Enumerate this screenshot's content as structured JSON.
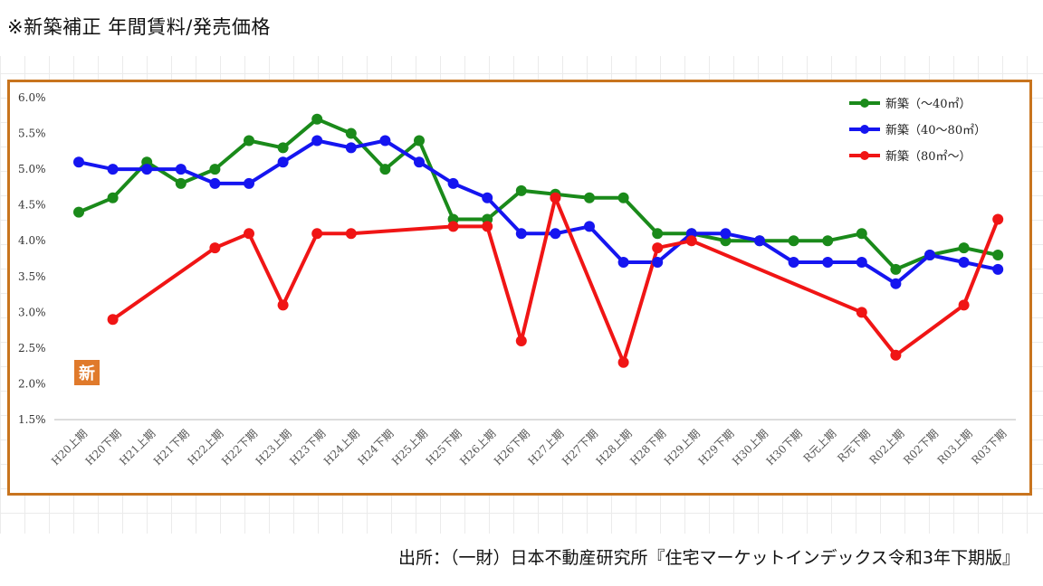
{
  "title": "※新築補正 年間賃料/発売価格",
  "source": "出所：（一財）日本不動産研究所『住宅マーケットインデックス令和3年下期版』",
  "badge": "新",
  "chart_data": {
    "type": "line",
    "title": "",
    "xlabel": "",
    "ylabel": "",
    "ylim": [
      0.015,
      0.06
    ],
    "yticks": [
      "6.0%",
      "5.5%",
      "5.0%",
      "4.5%",
      "4.0%",
      "3.5%",
      "3.0%",
      "2.5%",
      "2.0%",
      "1.5%"
    ],
    "grid": false,
    "legend_position": "top-right",
    "categories": [
      "H20上期",
      "H20下期",
      "H21上期",
      "H21下期",
      "H22上期",
      "H22下期",
      "H23上期",
      "H23下期",
      "H24上期",
      "H24下期",
      "H25上期",
      "H25下期",
      "H26上期",
      "H26下期",
      "H27上期",
      "H27下期",
      "H28上期",
      "H28下期",
      "H29上期",
      "H29下期",
      "H30上期",
      "H30下期",
      "R元上期",
      "R元下期",
      "R02上期",
      "R02下期",
      "R03上期",
      "R03下期"
    ],
    "series": [
      {
        "name": "新築（～40㎡）",
        "color": "#1a8a1a",
        "values": [
          0.044,
          0.046,
          0.051,
          0.048,
          0.05,
          0.054,
          0.053,
          0.057,
          0.055,
          0.05,
          0.054,
          0.043,
          0.043,
          0.047,
          0.0465,
          0.046,
          0.046,
          0.041,
          0.041,
          0.04,
          0.04,
          0.04,
          0.04,
          0.041,
          0.036,
          0.038,
          0.039,
          0.038
        ]
      },
      {
        "name": "新築（40～80㎡）",
        "color": "#1515f0",
        "values": [
          0.051,
          0.05,
          0.05,
          0.05,
          0.048,
          0.048,
          0.051,
          0.054,
          0.053,
          0.054,
          0.051,
          0.048,
          0.046,
          0.041,
          0.041,
          0.042,
          0.037,
          0.037,
          0.041,
          0.041,
          0.04,
          0.037,
          0.037,
          0.037,
          0.034,
          0.038,
          0.037,
          0.036
        ]
      },
      {
        "name": "新築（80㎡～）",
        "color": "#f01515",
        "values": [
          null,
          0.029,
          null,
          null,
          0.039,
          0.041,
          0.031,
          0.041,
          0.041,
          null,
          null,
          0.042,
          0.042,
          0.026,
          0.046,
          null,
          0.023,
          0.039,
          0.04,
          null,
          null,
          null,
          null,
          0.03,
          0.024,
          null,
          0.031,
          0.043
        ]
      }
    ]
  }
}
